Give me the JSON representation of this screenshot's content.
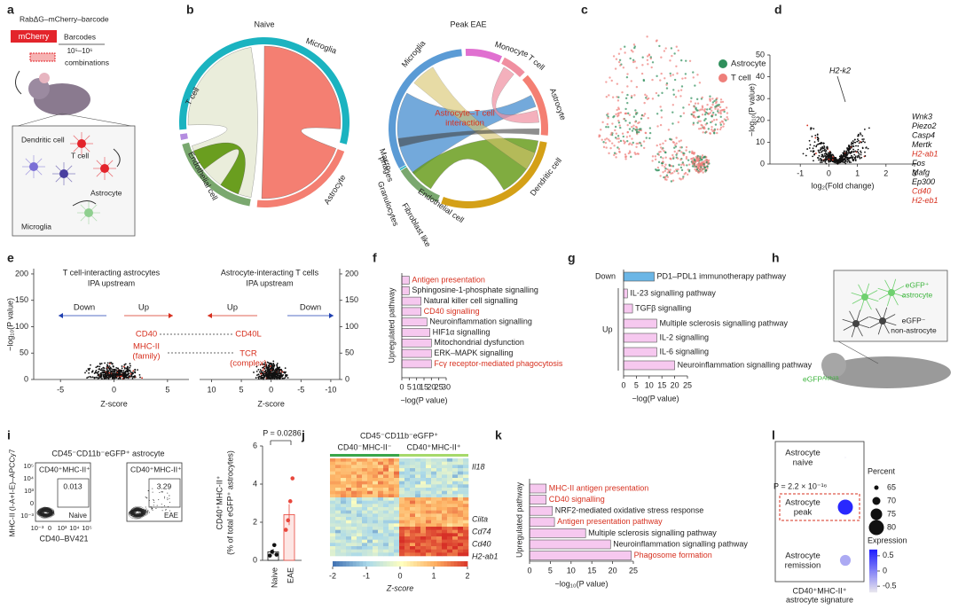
{
  "letters": [
    "a",
    "b",
    "c",
    "d",
    "e",
    "f",
    "g",
    "h",
    "i",
    "j",
    "k",
    "l"
  ],
  "a": {
    "construct": "RabΔG–mCherry–barcode",
    "mcherry": "mCherry",
    "barcodes": "Barcodes",
    "range": "10⁵–10⁶",
    "combinations": "combinations",
    "cells": [
      "Dendritic cell",
      "T cell",
      "Astrocyte",
      "Microglia"
    ]
  },
  "b": {
    "naive": {
      "title": "Naive",
      "labels": [
        "Microglia",
        "T cell",
        "Endothelial cell",
        "Astrocyte"
      ]
    },
    "eae": {
      "title": "Peak EAE",
      "labels": [
        "Microglia",
        "Monocyte",
        "T cell",
        "Astrocyte",
        "Dendritic cell",
        "Endothelial cell",
        "Fibroblast like",
        "Granulocytes",
        [
          "Macro-",
          "phages"
        ]
      ]
    },
    "annotation": [
      "Astrocyte–T cell",
      "interaction"
    ]
  },
  "c": {
    "legend": [
      {
        "name": "Astrocyte",
        "color": "#2f8f5b"
      },
      {
        "name": "T cell",
        "color": "#ee7f7a"
      }
    ]
  },
  "d": {
    "type": "scatter",
    "xlabel": "log₂(Fold change)",
    "ylabel": "−log₁₀(P value)",
    "xlim": [
      -2,
      3
    ],
    "xticks": [
      -1,
      0,
      1,
      2,
      3
    ],
    "ylim": [
      0,
      50
    ],
    "yticks": [
      0,
      10,
      20,
      30,
      40,
      50
    ],
    "genes": [
      {
        "name": "H2-k2",
        "color": "#111111"
      },
      {
        "name": "Wnk3",
        "color": "#111111"
      },
      {
        "name": "Piezo2",
        "color": "#111111"
      },
      {
        "name": "Casp4",
        "color": "#111111"
      },
      {
        "name": "Mertk",
        "color": "#111111"
      },
      {
        "name": "H2-ab1",
        "color": "#d7301f"
      },
      {
        "name": "Fos",
        "color": "#111111"
      },
      {
        "name": "Mafg",
        "color": "#111111"
      },
      {
        "name": "Ep300",
        "color": "#111111"
      },
      {
        "name": "Cd40",
        "color": "#d7301f"
      },
      {
        "name": "H2-eb1",
        "color": "#d7301f"
      }
    ]
  },
  "e": {
    "ylim": [
      0,
      210
    ],
    "yticks": [
      0,
      50,
      100,
      150,
      200
    ],
    "ylabel": "−log₁₀(P value)",
    "xlabel": "Z-score",
    "left": {
      "title": "T cell-interacting astrocytes",
      "subtitle": "IPA upstream",
      "xlim": [
        -7.5,
        7
      ],
      "xticks": [
        -5,
        0,
        5
      ],
      "down": "Down",
      "up": "Up",
      "labels": [
        [
          "CD40"
        ],
        [
          "MHC-II",
          "(family)"
        ]
      ]
    },
    "right": {
      "title": "Astrocyte-interacting T cells",
      "subtitle": "IPA upstream",
      "xlim": [
        12,
        -11.5
      ],
      "xticks": [
        10,
        5,
        0,
        -5,
        -10
      ],
      "up": "Up",
      "down": "Down",
      "labels": [
        [
          "CD40L"
        ],
        [
          "TCR",
          "(complex)"
        ]
      ]
    }
  },
  "f": {
    "type": "barh",
    "ylabel": "Upregulated pathway",
    "xlabel": "−log(P value)",
    "color": "#f6c8ef",
    "xlim": [
      0,
      30
    ],
    "xticks": [
      0,
      5,
      10,
      15,
      20,
      25,
      30
    ],
    "categories": [
      "Antigen presentation",
      "Sphingosine-1-phosphate signalling",
      "Natural killer cell signalling",
      "CD40 signalling",
      "Neuroinflammation signalling",
      "HIF1α signalling",
      "Mitochondrial dysfunction",
      "ERK–MAPK signalling",
      "Fcγ receptor-mediated phagocytosis"
    ],
    "values": [
      5,
      5,
      13,
      13,
      17,
      19,
      20,
      20,
      20
    ],
    "label_colors": [
      "#d7301f",
      "#222222",
      "#222222",
      "#d7301f",
      "#222222",
      "#222222",
      "#222222",
      "#222222",
      "#d7301f"
    ]
  },
  "g": {
    "type": "barh",
    "xlabel": "−log(P value)",
    "xlim": [
      0,
      25
    ],
    "xticks": [
      0,
      5,
      10,
      15,
      20,
      25
    ],
    "groups": [
      {
        "name": "Down",
        "color": "#6bb6e6",
        "categories": [
          "PD1–PDL1 immunotherapy pathway"
        ],
        "values": [
          12
        ]
      },
      {
        "name": "Up",
        "color": "#f6c8ef",
        "categories": [
          "IL-23 signalling pathway",
          "TGFβ signalling",
          "Multiple sclerosis signalling pathway",
          "IL-2 signalling",
          "IL-6 signalling",
          "Neuroinflammation signalling pathway"
        ],
        "values": [
          1.5,
          3.5,
          13,
          13,
          13,
          20
        ]
      }
    ]
  },
  "h": {
    "labels": [
      [
        "eGFP⁺",
        "astrocyte"
      ],
      [
        "eGFP⁻",
        "non-astrocyte"
      ]
    ],
    "mouse": "eGFPᴬˡᵈʰ¹ˡ¹"
  },
  "i": {
    "title": "CD45⁻CD11b⁻eGFP⁺ astrocyte",
    "flow_xlabel": "CD40–BV421",
    "flow_ylabel": "MHC-II (I-A+I-E)–APCCy7",
    "flow_xticks": [
      "10⁻³",
      "0",
      "10³",
      "10⁴",
      "10⁵"
    ],
    "flow_yticks": [
      "10⁵",
      "10⁴",
      "10³",
      "0",
      "10⁻³"
    ],
    "gates": [
      {
        "label": "CD40⁺MHC-II⁺",
        "value": 0.013,
        "condition": "Naive"
      },
      {
        "label": "CD40⁺MHC-II⁺",
        "value": 3.29,
        "condition": "EAE"
      }
    ],
    "bar": {
      "type": "bar",
      "categories": [
        "Naive",
        "EAE"
      ],
      "values": [
        0.45,
        2.4
      ],
      "errors": [
        0.15,
        0.55
      ],
      "points": [
        [
          0.25,
          0.45,
          0.8,
          0.3
        ],
        [
          1.6,
          2.1,
          3.1,
          4.3
        ]
      ],
      "point_colors": [
        "#111111",
        "#e8473c"
      ],
      "ylabel": [
        "CD40⁺MHC-II⁺",
        "(% of total eGFP⁺ astrocytes)"
      ],
      "ylim": [
        0,
        6
      ],
      "yticks": [
        0,
        2,
        4,
        6
      ],
      "pvalue": "P = 0.0286"
    }
  },
  "j": {
    "header": "CD45⁻CD11b⁻eGFP⁺",
    "groups": [
      "CD40⁻MHC-II⁻",
      "CD40⁺MHC-II⁺"
    ],
    "group_colors": [
      "#3aa54a",
      "#a6d96a"
    ],
    "genes": [
      "Il18",
      "Ciita",
      "Cd74",
      "Cd40",
      "H2-ab1"
    ],
    "colorbar": {
      "label": "Z-score",
      "lim": [
        -2,
        2
      ],
      "ticks": [
        -2,
        -1,
        0,
        1,
        2
      ]
    }
  },
  "k": {
    "type": "barh",
    "ylabel": "Upregulated pathway",
    "xlabel": "−log₁₀(P value)",
    "color": "#f6c8ef",
    "xlim": [
      0,
      25
    ],
    "xticks": [
      0,
      5,
      10,
      15,
      20,
      25
    ],
    "categories": [
      "MHC-II antigen presentation",
      "CD40 signalling",
      "NRF2-mediated oxidative stress response",
      "Antigen presentation pathway",
      "Multiple sclerosis signalling pathway",
      "Neuroinflammation signalling pathway",
      "Phagosome formation"
    ],
    "values": [
      4,
      4,
      5.5,
      6,
      13.5,
      19.5,
      24.5
    ],
    "label_colors": [
      "#d7301f",
      "#d7301f",
      "#222222",
      "#d7301f",
      "#222222",
      "#222222",
      "#d7301f"
    ]
  },
  "l": {
    "type": "dot",
    "rows": [
      [
        "Astrocyte",
        "naive"
      ],
      [
        "Astrocyte",
        "peak"
      ],
      [
        "Astrocyte",
        "remission"
      ]
    ],
    "percent": [
      60,
      80,
      74
    ],
    "expression": [
      -0.6,
      0.6,
      -0.3
    ],
    "pvalue": "P = 2.2 × 10⁻¹⁶",
    "xlabel": [
      "CD40⁺MHC-II⁺",
      "astrocyte signature"
    ],
    "size_title": "Percent",
    "size_ticks": [
      65,
      70,
      75,
      80
    ],
    "color_title": "Expression",
    "color_lim": [
      -0.7,
      0.7
    ],
    "color_ticks": [
      0.5,
      0,
      -0.5
    ],
    "colors": [
      "#e6e3ee",
      "#1a1aff"
    ]
  }
}
